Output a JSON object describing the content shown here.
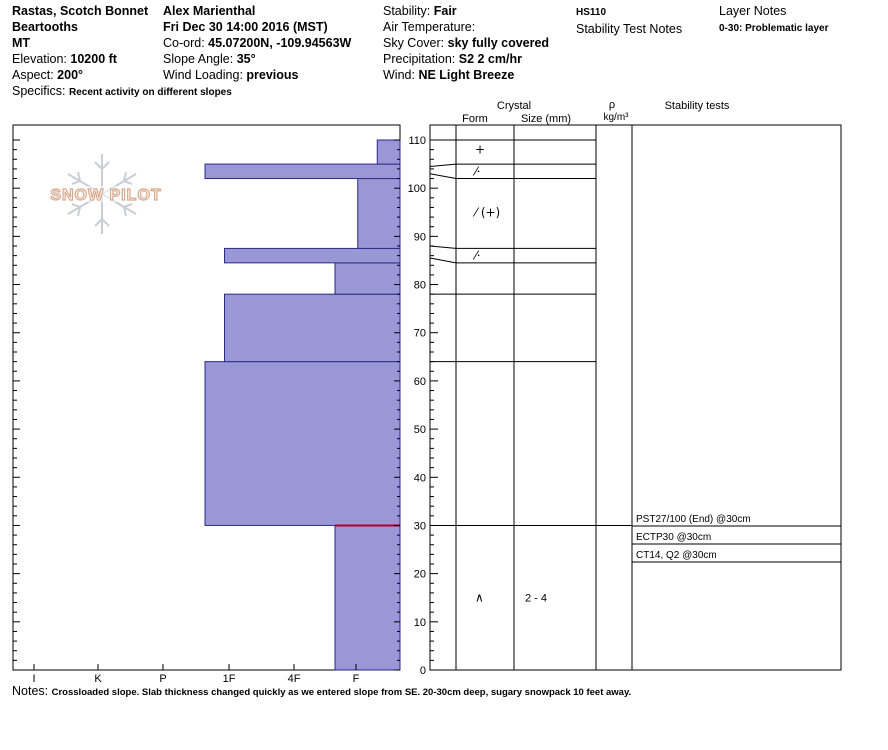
{
  "header": {
    "location_line1": "Rastas, Scotch Bonnet",
    "location_line2": "Beartooths",
    "state": "MT",
    "elevation_label": "Elevation:",
    "elevation": "10200 ft",
    "aspect_label": "Aspect:",
    "aspect": "200°",
    "specifics_label": "Specifics:",
    "specifics": "Recent activity on different slopes",
    "observer": "Alex Marienthal",
    "datetime": "Fri Dec 30 14:00 2016 (MST)",
    "coord_label": "Co-ord:",
    "coord": "45.07200N, -109.94563W",
    "slope_label": "Slope Angle:",
    "slope": "35°",
    "wind_loading_label": "Wind Loading:",
    "wind_loading": "previous",
    "stability_label": "Stability:",
    "stability": "Fair",
    "air_temp_label": "Air Temperature:",
    "sky_label": "Sky Cover:",
    "sky": "sky fully covered",
    "precip_label": "Precipitation:",
    "precip": "S2 2 cm/hr",
    "wind_label": "Wind:",
    "wind": "NE Light Breeze",
    "hs": "HS110",
    "stability_test_notes": "Stability Test Notes",
    "layer_notes_title": "Layer Notes",
    "layer_note": "0-30: Problematic layer"
  },
  "logo_text": "SNOW PILOT",
  "columns": {
    "crystal": "Crystal",
    "form": "Form",
    "size": "Size (mm)",
    "rho": "ρ",
    "density_unit": "kg/m³",
    "stability_tests": "Stability tests"
  },
  "notes_label": "Notes:",
  "notes": "Crossloaded slope. Slab thickness changed quickly as we entered slope from SE. 20-30cm deep, sugary snowpack 10 feet away.",
  "colors": {
    "layer_fill": "#9a97d6",
    "layer_stroke": "#2a2a8a",
    "critical": "#b0002a"
  },
  "chart_data": {
    "type": "snow-profile",
    "hardness_axis_labels": [
      "I",
      "K",
      "P",
      "1F",
      "4F",
      "F"
    ],
    "depth_axis": {
      "min": 0,
      "max": 110,
      "unit": "cm",
      "major_ticks": [
        0,
        10,
        20,
        30,
        40,
        50,
        60,
        70,
        80,
        90,
        100,
        110
      ]
    },
    "layers": [
      {
        "bottom": 0,
        "top": 30,
        "hardness": 1.0
      },
      {
        "bottom": 30,
        "top": 64,
        "hardness": 3.0
      },
      {
        "bottom": 64,
        "top": 78,
        "hardness": 2.7
      },
      {
        "bottom": 78,
        "top": 84.5,
        "hardness": 1.0
      },
      {
        "bottom": 84.5,
        "top": 87.5,
        "hardness": 2.7
      },
      {
        "bottom": 87.5,
        "top": 102,
        "hardness": 0.65
      },
      {
        "bottom": 102,
        "top": 105,
        "hardness": 3.0
      },
      {
        "bottom": 105,
        "top": 110,
        "hardness": 0.35
      }
    ],
    "critical_depth": 30,
    "grain_layers": [
      {
        "depth": 108,
        "form": "+",
        "size": ""
      },
      {
        "depth": 103.5,
        "form": "⁄⸱",
        "size": ""
      },
      {
        "depth": 95,
        "form": "⁄ (+)",
        "size": ""
      },
      {
        "depth": 86,
        "form": "⁄⸱",
        "size": ""
      },
      {
        "depth": 15,
        "form": "∧",
        "size": "2 - 4"
      }
    ],
    "stability_tests": [
      {
        "label": "PST27/100 (End) @30cm"
      },
      {
        "label": "ECTP30 @30cm"
      },
      {
        "label": "CT14, Q2 @30cm"
      }
    ]
  }
}
